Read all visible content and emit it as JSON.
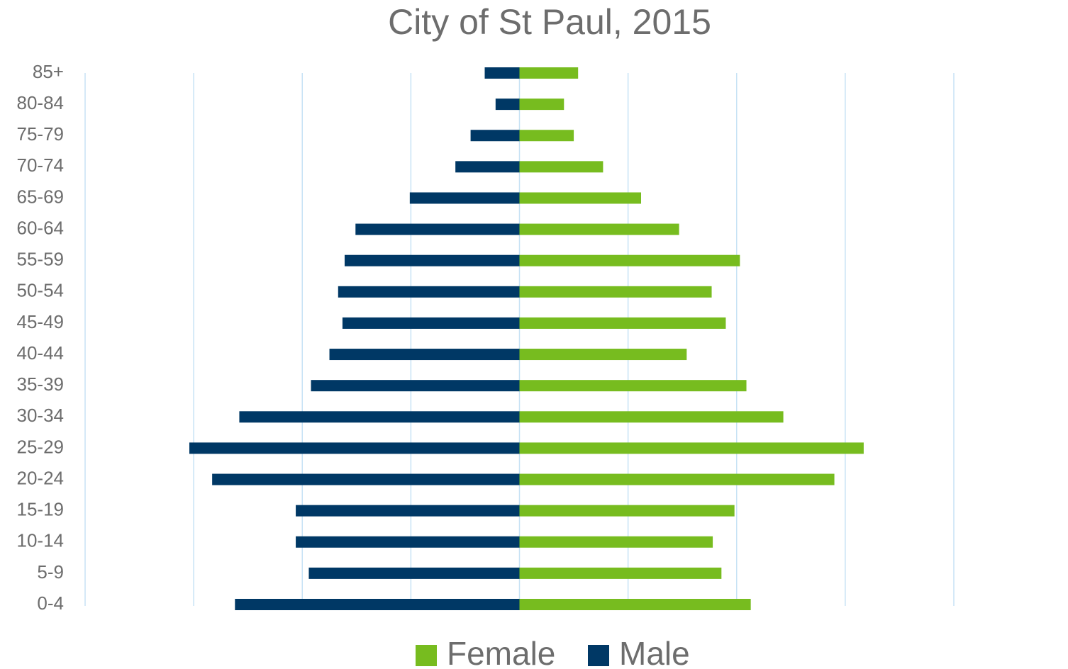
{
  "chart_data": {
    "type": "bar",
    "orientation": "horizontal",
    "title": "City of St Paul, 2015",
    "categories": [
      "0-4",
      "5-9",
      "10-14",
      "15-19",
      "20-24",
      "25-29",
      "30-34",
      "35-39",
      "40-44",
      "45-49",
      "50-54",
      "55-59",
      "60-64",
      "65-69",
      "70-74",
      "75-79",
      "80-84",
      "85+"
    ],
    "series": [
      {
        "name": "Female",
        "color": "#77bc1f",
        "values": [
          2.13,
          1.86,
          1.78,
          1.98,
          2.9,
          3.17,
          2.43,
          2.09,
          1.54,
          1.9,
          1.77,
          2.03,
          1.47,
          1.12,
          0.77,
          0.5,
          0.41,
          0.54
        ]
      },
      {
        "name": "Male",
        "color": "#003865",
        "values": [
          -2.62,
          -1.94,
          -2.06,
          -2.06,
          -2.83,
          -3.04,
          -2.58,
          -1.92,
          -1.75,
          -1.63,
          -1.67,
          -1.61,
          -1.51,
          -1.01,
          -0.59,
          -0.45,
          -0.22,
          -0.32
        ]
      }
    ],
    "xlim": [
      -4,
      4
    ],
    "xticks": [
      -4,
      -3,
      -2,
      -1,
      0,
      1,
      2,
      3,
      4
    ],
    "grid": true,
    "legend": "bottom"
  }
}
